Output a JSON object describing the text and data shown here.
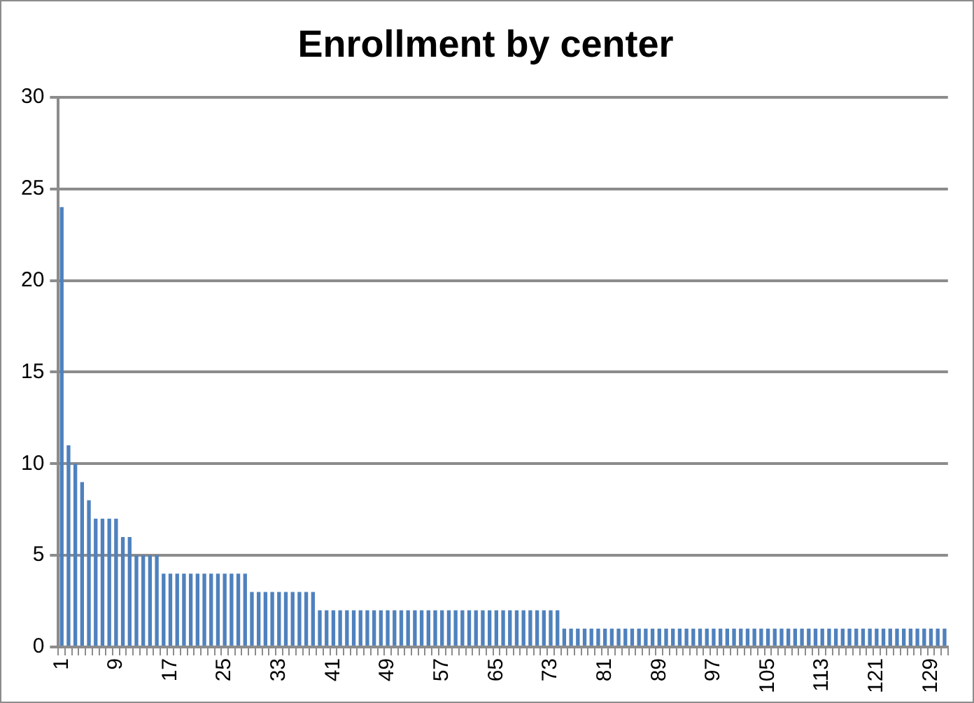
{
  "chart_data": {
    "type": "bar",
    "title": "Enrollment by center",
    "categories": [
      "1",
      null,
      null,
      null,
      null,
      null,
      null,
      null,
      "9",
      null,
      null,
      null,
      null,
      null,
      null,
      null,
      "17",
      null,
      null,
      null,
      null,
      null,
      null,
      null,
      "25",
      null,
      null,
      null,
      null,
      null,
      null,
      null,
      "33",
      null,
      null,
      null,
      null,
      null,
      null,
      null,
      "41",
      null,
      null,
      null,
      null,
      null,
      null,
      null,
      "49",
      null,
      null,
      null,
      null,
      null,
      null,
      null,
      "57",
      null,
      null,
      null,
      null,
      null,
      null,
      null,
      "65",
      null,
      null,
      null,
      null,
      null,
      null,
      null,
      "73",
      null,
      null,
      null,
      null,
      null,
      null,
      null,
      "81",
      null,
      null,
      null,
      null,
      null,
      null,
      null,
      "89",
      null,
      null,
      null,
      null,
      null,
      null,
      null,
      "97",
      null,
      null,
      null,
      null,
      null,
      null,
      null,
      "105",
      null,
      null,
      null,
      null,
      null,
      null,
      null,
      "113",
      null,
      null,
      null,
      null,
      null,
      null,
      null,
      "121",
      null,
      null,
      null,
      null,
      null,
      null,
      null,
      "129",
      null,
      null
    ],
    "values": [
      24,
      11,
      10,
      9,
      8,
      7,
      7,
      7,
      7,
      6,
      6,
      5,
      5,
      5,
      5,
      4,
      4,
      4,
      4,
      4,
      4,
      4,
      4,
      4,
      4,
      4,
      4,
      4,
      3,
      3,
      3,
      3,
      3,
      3,
      3,
      3,
      3,
      3,
      2,
      2,
      2,
      2,
      2,
      2,
      2,
      2,
      2,
      2,
      2,
      2,
      2,
      2,
      2,
      2,
      2,
      2,
      2,
      2,
      2,
      2,
      2,
      2,
      2,
      2,
      2,
      2,
      2,
      2,
      2,
      2,
      2,
      2,
      2,
      2,
      1,
      1,
      1,
      1,
      1,
      1,
      1,
      1,
      1,
      1,
      1,
      1,
      1,
      1,
      1,
      1,
      1,
      1,
      1,
      1,
      1,
      1,
      1,
      1,
      1,
      1,
      1,
      1,
      1,
      1,
      1,
      1,
      1,
      1,
      1,
      1,
      1,
      1,
      1,
      1,
      1,
      1,
      1,
      1,
      1,
      1,
      1,
      1,
      1,
      1,
      1,
      1,
      1,
      1,
      1,
      1,
      1
    ],
    "color": "#4f81bd",
    "ylim": [
      0,
      30
    ],
    "yticks": [
      0,
      5,
      10,
      15,
      20,
      25,
      30
    ],
    "grid": "y",
    "legend": false
  }
}
